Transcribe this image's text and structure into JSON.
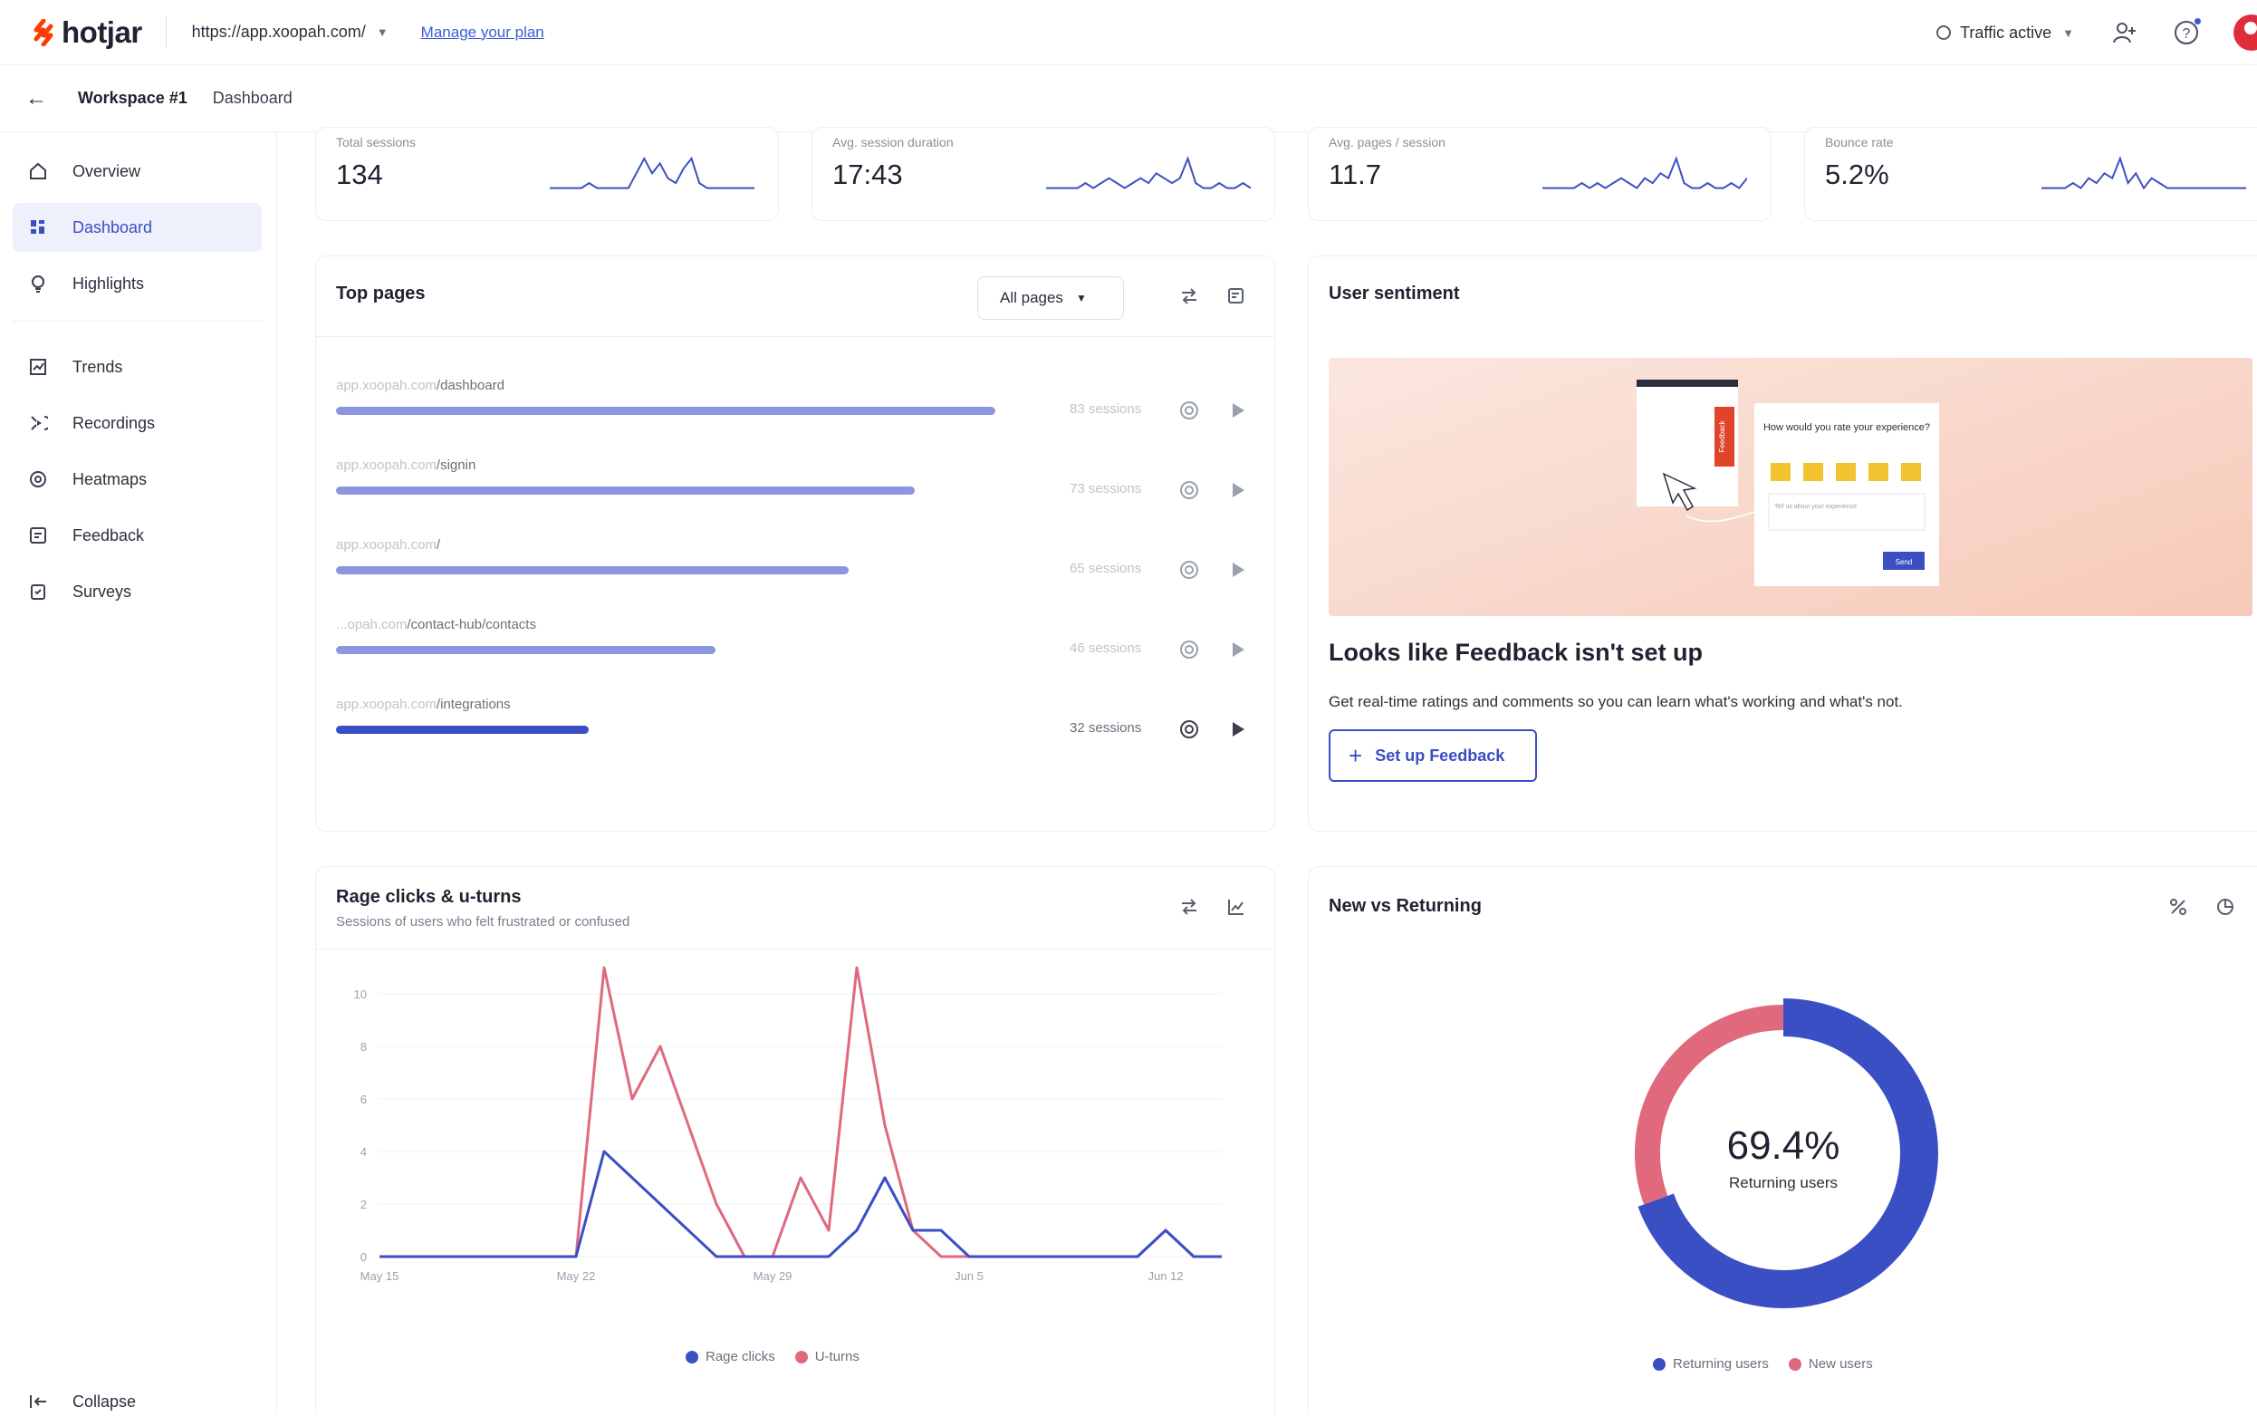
{
  "topbar": {
    "logo_text": "hotjar",
    "site_url": "https://app.xoopah.com/",
    "manage_link": "Manage your plan",
    "traffic_status": "Traffic active",
    "brand_color": "#ff3c00"
  },
  "breadcrumb": {
    "workspace": "Workspace #1",
    "page": "Dashboard"
  },
  "sidebar": {
    "items": [
      {
        "label": "Overview",
        "icon": "home-icon"
      },
      {
        "label": "Dashboard",
        "icon": "dashboard-icon",
        "active": true
      },
      {
        "label": "Highlights",
        "icon": "lightbulb-icon"
      },
      {
        "label": "Trends",
        "icon": "trends-icon"
      },
      {
        "label": "Recordings",
        "icon": "recordings-icon"
      },
      {
        "label": "Heatmaps",
        "icon": "heatmaps-icon"
      },
      {
        "label": "Feedback",
        "icon": "feedback-icon"
      },
      {
        "label": "Surveys",
        "icon": "surveys-icon"
      }
    ],
    "collapse_label": "Collapse"
  },
  "metrics": [
    {
      "label": "Total sessions",
      "value": "134"
    },
    {
      "label": "Avg. session duration",
      "value": "17:43"
    },
    {
      "label": "Avg. pages / session",
      "value": "11.7"
    },
    {
      "label": "Bounce rate",
      "value": "5.2%"
    }
  ],
  "top_pages": {
    "title": "Top pages",
    "filter": "All pages",
    "rows": [
      {
        "domain": "app.xoopah.com",
        "path": "/dashboard",
        "sessions": "83 sessions",
        "share": 0.99
      },
      {
        "domain": "app.xoopah.com",
        "path": "/signin",
        "sessions": "73 sessions",
        "share": 0.87
      },
      {
        "domain": "app.xoopah.com",
        "path": "/",
        "sessions": "65 sessions",
        "share": 0.77
      },
      {
        "domain": "...opah.com",
        "path": "/contact-hub/contacts",
        "sessions": "46 sessions",
        "share": 0.57
      },
      {
        "domain": "app.xoopah.com",
        "path": "/integrations",
        "sessions": "32 sessions",
        "share": 0.38,
        "highlight": true
      }
    ]
  },
  "sentiment": {
    "title": "User sentiment",
    "widget_question": "How would you rate your experience?",
    "widget_placeholder": "Tell us about your experience",
    "widget_tab": "Feedback",
    "widget_send": "Send",
    "heading": "Looks like Feedback isn't set up",
    "body": "Get real-time ratings and comments so you can learn what's working and what's not.",
    "button": "Set up Feedback"
  },
  "rage": {
    "title": "Rage clicks & u-turns",
    "subtitle": "Sessions of users who felt frustrated or confused",
    "legend": [
      "Rage clicks",
      "U-turns"
    ]
  },
  "returning": {
    "title": "New vs Returning",
    "center_value": "69.4%",
    "center_label": "Returning users",
    "legend": [
      "Returning users",
      "New users"
    ]
  },
  "chart_data": [
    {
      "type": "line",
      "title": "Rage clicks & u-turns",
      "x": [
        "May 15",
        "May 16",
        "May 17",
        "May 18",
        "May 19",
        "May 20",
        "May 21",
        "May 22",
        "May 23",
        "May 24",
        "May 25",
        "May 26",
        "May 27",
        "May 28",
        "May 29",
        "May 30",
        "May 31",
        "Jun 1",
        "Jun 2",
        "Jun 3",
        "Jun 4",
        "Jun 5",
        "Jun 6",
        "Jun 7",
        "Jun 8",
        "Jun 9",
        "Jun 10",
        "Jun 11",
        "Jun 12",
        "Jun 13",
        "Jun 14"
      ],
      "x_tick_labels": [
        "May 15",
        "May 22",
        "May 29",
        "Jun 5",
        "Jun 12"
      ],
      "ylim": [
        0,
        10
      ],
      "y_ticks": [
        0,
        2,
        4,
        6,
        8,
        10
      ],
      "series": [
        {
          "name": "Rage clicks",
          "color": "#3b4fc4",
          "values": [
            0,
            0,
            0,
            0,
            0,
            0,
            0,
            0,
            4,
            3,
            2,
            1,
            0,
            0,
            0,
            0,
            0,
            1,
            3,
            1,
            1,
            0,
            0,
            0,
            0,
            0,
            0,
            0,
            1,
            0,
            0
          ]
        },
        {
          "name": "U-turns",
          "color": "#e0697e",
          "values": [
            0,
            0,
            0,
            0,
            0,
            0,
            0,
            0,
            11,
            6,
            8,
            5,
            2,
            0,
            0,
            3,
            1,
            11,
            5,
            1,
            0,
            0,
            0,
            0,
            0,
            0,
            0,
            0,
            1,
            0,
            0
          ]
        }
      ],
      "grid": true,
      "legend_position": "bottom"
    },
    {
      "type": "pie",
      "title": "New vs Returning",
      "labels": [
        "Returning users",
        "New users"
      ],
      "values": [
        69.4,
        30.6
      ],
      "colors": [
        "#3b4fc4",
        "#e0697e"
      ],
      "donut": true
    }
  ],
  "metric_sparklines": [
    [
      1,
      1,
      1,
      1,
      1,
      2,
      1,
      1,
      1,
      1,
      1,
      4,
      7,
      4,
      6,
      3,
      2,
      5,
      7,
      2,
      1,
      1,
      1,
      1,
      1,
      1,
      1
    ],
    [
      1,
      1,
      1,
      1,
      1,
      2,
      1,
      2,
      3,
      2,
      1,
      2,
      3,
      2,
      4,
      3,
      2,
      3,
      7,
      2,
      1,
      1,
      2,
      1,
      1,
      2,
      1
    ],
    [
      1,
      1,
      1,
      1,
      1,
      2,
      1,
      2,
      1,
      2,
      3,
      2,
      1,
      3,
      2,
      4,
      3,
      7,
      2,
      1,
      1,
      2,
      1,
      1,
      2,
      1,
      3
    ],
    [
      1,
      1,
      1,
      1,
      2,
      1,
      3,
      2,
      4,
      3,
      7,
      2,
      4,
      1,
      3,
      2,
      1,
      1,
      1,
      1,
      1,
      1,
      1,
      1,
      1,
      1,
      1
    ]
  ]
}
